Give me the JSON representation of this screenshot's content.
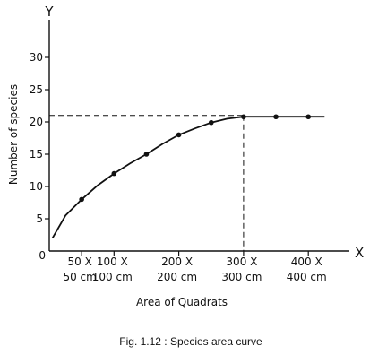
{
  "chart_data": {
    "type": "line",
    "xlabel": "Area of Quadrats",
    "ylabel": "Number of species",
    "x_axis_letter": "X",
    "y_axis_letter": "Y",
    "origin_label": "0",
    "xlim": [
      0,
      450
    ],
    "ylim": [
      0,
      35
    ],
    "y_ticks": [
      5,
      10,
      15,
      20,
      25,
      30
    ],
    "x_ticks": [
      {
        "value": 50,
        "line1": "50 X",
        "line2": "50 cm"
      },
      {
        "value": 100,
        "line1": "100 X",
        "line2": "100 cm"
      },
      {
        "value": 200,
        "line1": "200 X",
        "line2": "200 cm"
      },
      {
        "value": 300,
        "line1": "300 X",
        "line2": "300 cm"
      },
      {
        "value": 400,
        "line1": "400 X",
        "line2": "400 cm"
      }
    ],
    "curve": {
      "x": [
        5,
        25,
        50,
        75,
        100,
        125,
        150,
        175,
        200,
        225,
        250,
        275,
        300,
        325,
        350,
        375,
        400,
        425
      ],
      "y": [
        2,
        5.5,
        8,
        10.2,
        12,
        13.6,
        15,
        16.6,
        18,
        19,
        19.9,
        20.5,
        20.8,
        20.8,
        20.8,
        20.8,
        20.8,
        20.8
      ]
    },
    "points": {
      "x": [
        50,
        100,
        150,
        200,
        250,
        300,
        350,
        400
      ],
      "y": [
        8,
        12,
        15,
        18,
        19.9,
        20.8,
        20.8,
        20.8
      ]
    },
    "reference": {
      "x": 300,
      "y": 21
    },
    "grid": false,
    "legend": "none"
  },
  "caption": "Fig. 1.12 : Species area curve"
}
